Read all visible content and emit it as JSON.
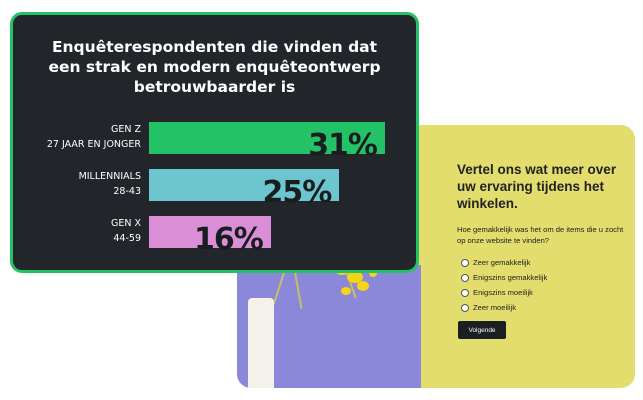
{
  "stats": {
    "title_lines": [
      "Enquêterespondenten die vinden dat",
      "een strak en modern enquêteontwerp",
      "betrouwbaarder is"
    ]
  },
  "chart_data": {
    "type": "bar",
    "orientation": "horizontal",
    "categories": [
      [
        "GEN Z",
        "27 JAAR EN JONGER"
      ],
      [
        "MILLENNIALS",
        "28-43"
      ],
      [
        "GEN X",
        "44-59"
      ]
    ],
    "values": [
      31,
      25,
      16
    ],
    "value_labels": [
      "31%",
      "25%",
      "16%"
    ],
    "unit": "%",
    "xlim": [
      0,
      31
    ],
    "bar_colors": [
      "#23c267",
      "#6cc5cf",
      "#d98ed6"
    ],
    "grid": false,
    "legend": "none"
  },
  "survey": {
    "title": "Vertel ons wat meer over uw ervaring tijdens het winkelen.",
    "question": "Hoe gemakkelijk was het om de items die u zocht op onze website te vinden?",
    "options": [
      "Zeer gemakkelijk",
      "Enigszins gemakkelijk",
      "Enigszins moeilijk",
      "Zeer moeilijk"
    ],
    "next_label": "Volgende"
  },
  "colors": {
    "survey_bg": "#e3dd6d",
    "stats_bg": "#22262a",
    "stats_border": "#23c267",
    "photo_bg": "#8b88d9"
  }
}
